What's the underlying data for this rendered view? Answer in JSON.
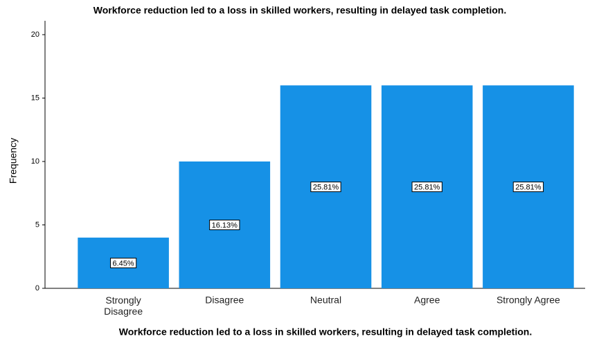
{
  "chart_data": {
    "type": "bar",
    "title": "Workforce reduction led to a loss in skilled workers, resulting in delayed task completion.",
    "x_label": "Workforce reduction led to a loss in skilled workers, resulting in delayed task completion.",
    "y_label": "Frequency",
    "categories": [
      "Strongly Disagree",
      "Disagree",
      "Neutral",
      "Agree",
      "Strongly Agree"
    ],
    "values": [
      4,
      10,
      16,
      16,
      16
    ],
    "data_labels": [
      "6.45%",
      "16.13%",
      "25.81%",
      "25.81%",
      "25.81%"
    ],
    "color": "#1691e6",
    "ylim": [
      0,
      20
    ],
    "yticks": [
      0,
      5,
      10,
      15,
      20
    ],
    "grid": false
  }
}
